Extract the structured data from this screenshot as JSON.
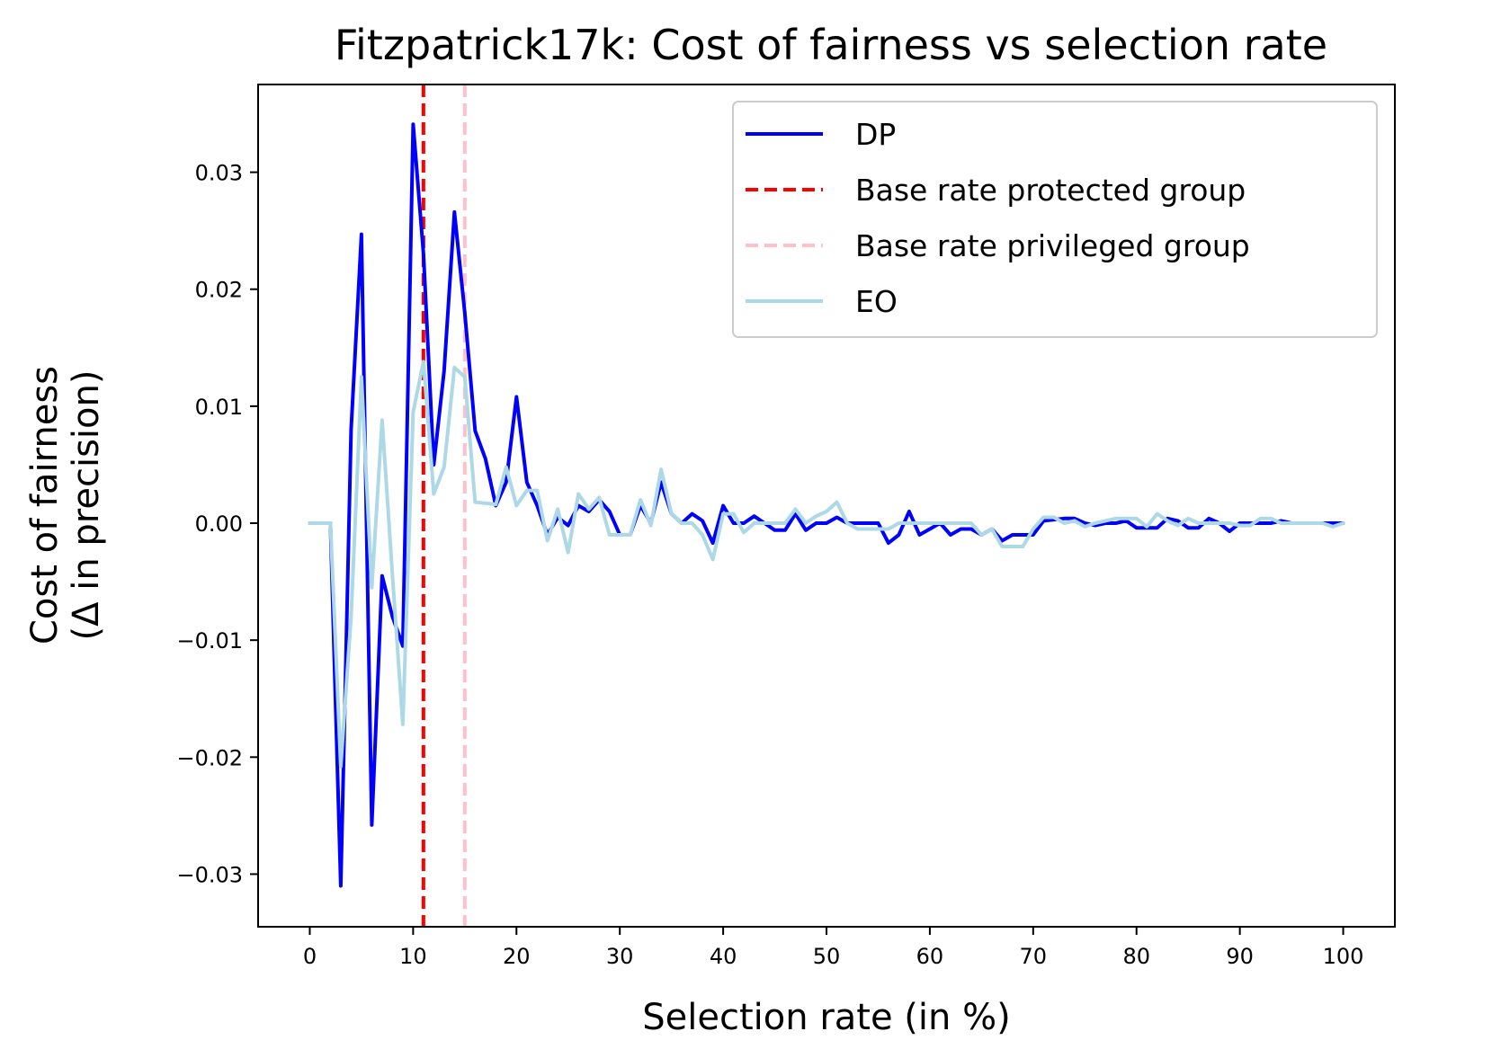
{
  "chart_data": {
    "type": "line",
    "title": "Fitzpatrick17k: Cost of fairness vs selection rate",
    "xlabel": "Selection rate (in %)",
    "ylabel_line1": "Cost of fairness",
    "ylabel_line2": "(Δ in precision)",
    "xlim": [
      -5,
      105
    ],
    "ylim": [
      -0.0345,
      0.0375
    ],
    "x_ticks": [
      0,
      10,
      20,
      30,
      40,
      50,
      60,
      70,
      80,
      90,
      100
    ],
    "x_tick_labels": [
      "0",
      "10",
      "20",
      "30",
      "40",
      "50",
      "60",
      "70",
      "80",
      "90",
      "100"
    ],
    "y_ticks": [
      -0.03,
      -0.02,
      -0.01,
      0.0,
      0.01,
      0.02,
      0.03
    ],
    "y_tick_labels": [
      "−0.03",
      "−0.02",
      "−0.01",
      "0.00",
      "0.01",
      "0.02",
      "0.03"
    ],
    "legend_position": "upper-right",
    "vlines": [
      {
        "name": "Base rate protected group",
        "x": 11,
        "color": "#ff0000"
      },
      {
        "name": "Base rate privileged group",
        "x": 15,
        "color": "#ffc0cb"
      }
    ],
    "series": [
      {
        "name": "DP",
        "color": "#0000ff",
        "points": [
          [
            0,
            0
          ],
          [
            1,
            0
          ],
          [
            2,
            0
          ],
          [
            3,
            -0.031
          ],
          [
            4,
            0.008
          ],
          [
            5,
            0.0247
          ],
          [
            6,
            -0.0258
          ],
          [
            7,
            -0.0045
          ],
          [
            8,
            -0.008
          ],
          [
            9,
            -0.0105
          ],
          [
            10,
            0.0341
          ],
          [
            11,
            0.023
          ],
          [
            12,
            0.005
          ],
          [
            13,
            0.013
          ],
          [
            14,
            0.0266
          ],
          [
            15,
            0.018
          ],
          [
            16,
            0.0079
          ],
          [
            17,
            0.0055
          ],
          [
            18,
            0.0015
          ],
          [
            19,
            0.0035
          ],
          [
            20,
            0.0108
          ],
          [
            21,
            0.0035
          ],
          [
            22,
            0.0015
          ],
          [
            23,
            -0.001
          ],
          [
            24,
            0.0005
          ],
          [
            25,
            -0.0002
          ],
          [
            26,
            0.0015
          ],
          [
            27,
            0.001
          ],
          [
            28,
            0.002
          ],
          [
            29,
            0.001
          ],
          [
            30,
            -0.001
          ],
          [
            31,
            -0.001
          ],
          [
            32,
            0.0015
          ],
          [
            33,
            0
          ],
          [
            34,
            0.0035
          ],
          [
            35,
            0.0008
          ],
          [
            36,
            0
          ],
          [
            37,
            0.0008
          ],
          [
            38,
            0.0002
          ],
          [
            39,
            -0.0017
          ],
          [
            40,
            0.0015
          ],
          [
            41,
            0
          ],
          [
            42,
            0
          ],
          [
            43,
            0.0006
          ],
          [
            44,
            0
          ],
          [
            45,
            -0.0006
          ],
          [
            46,
            -0.0006
          ],
          [
            47,
            0.0008
          ],
          [
            48,
            -0.0006
          ],
          [
            49,
            0
          ],
          [
            50,
            0
          ],
          [
            51,
            0.0005
          ],
          [
            52,
            0
          ],
          [
            53,
            0
          ],
          [
            54,
            0
          ],
          [
            55,
            0
          ],
          [
            56,
            -0.0017
          ],
          [
            57,
            -0.001
          ],
          [
            58,
            0.001
          ],
          [
            59,
            -0.001
          ],
          [
            60,
            -0.0005
          ],
          [
            61,
            0
          ],
          [
            62,
            -0.001
          ],
          [
            63,
            -0.0005
          ],
          [
            64,
            -0.0005
          ],
          [
            65,
            -0.001
          ],
          [
            66,
            -0.0005
          ],
          [
            67,
            -0.0015
          ],
          [
            68,
            -0.001
          ],
          [
            69,
            -0.001
          ],
          [
            70,
            -0.001
          ],
          [
            71,
            0.0002
          ],
          [
            72,
            0.0003
          ],
          [
            73,
            0.0004
          ],
          [
            74,
            0.0004
          ],
          [
            75,
            0
          ],
          [
            76,
            -0.0002
          ],
          [
            77,
            0
          ],
          [
            78,
            0
          ],
          [
            79,
            0.0002
          ],
          [
            80,
            -0.0004
          ],
          [
            81,
            -0.0004
          ],
          [
            82,
            -0.0004
          ],
          [
            83,
            0.0004
          ],
          [
            84,
            0.0002
          ],
          [
            85,
            -0.0004
          ],
          [
            86,
            -0.0004
          ],
          [
            87,
            0.0004
          ],
          [
            88,
            0
          ],
          [
            89,
            -0.0007
          ],
          [
            90,
            0
          ],
          [
            91,
            0
          ],
          [
            92,
            0
          ],
          [
            93,
            0
          ],
          [
            94,
            0.0002
          ],
          [
            95,
            0
          ],
          [
            96,
            0
          ],
          [
            97,
            0
          ],
          [
            98,
            0
          ],
          [
            99,
            0
          ],
          [
            100,
            0
          ]
        ]
      },
      {
        "name": "EO",
        "color": "#add8e6",
        "points": [
          [
            0,
            0
          ],
          [
            1,
            0
          ],
          [
            2,
            0
          ],
          [
            3,
            -0.0208
          ],
          [
            4,
            -0.008
          ],
          [
            5,
            0.0125
          ],
          [
            6,
            -0.0055
          ],
          [
            7,
            0.0088
          ],
          [
            8,
            -0.0045
          ],
          [
            9,
            -0.0172
          ],
          [
            10,
            0.0095
          ],
          [
            11,
            0.0138
          ],
          [
            12,
            0.0025
          ],
          [
            13,
            0.0048
          ],
          [
            14,
            0.0133
          ],
          [
            15,
            0.0125
          ],
          [
            16,
            0.0018
          ],
          [
            17,
            0.0017
          ],
          [
            18,
            0.0016
          ],
          [
            19,
            0.0048
          ],
          [
            20,
            0.0015
          ],
          [
            21,
            0.0028
          ],
          [
            22,
            0.0028
          ],
          [
            23,
            -0.0015
          ],
          [
            24,
            0.0012
          ],
          [
            25,
            -0.0025
          ],
          [
            26,
            0.0025
          ],
          [
            27,
            0.0012
          ],
          [
            28,
            0.0022
          ],
          [
            29,
            -0.001
          ],
          [
            30,
            -0.001
          ],
          [
            31,
            -0.001
          ],
          [
            32,
            0.002
          ],
          [
            33,
            -0.0002
          ],
          [
            34,
            0.0046
          ],
          [
            35,
            0.0008
          ],
          [
            36,
            0
          ],
          [
            37,
            0
          ],
          [
            38,
            -0.001
          ],
          [
            39,
            -0.0031
          ],
          [
            40,
            0.0008
          ],
          [
            41,
            0.0008
          ],
          [
            42,
            -0.0008
          ],
          [
            43,
            0
          ],
          [
            44,
            0
          ],
          [
            45,
            0
          ],
          [
            46,
            0
          ],
          [
            47,
            0.0012
          ],
          [
            48,
            0
          ],
          [
            49,
            0.0006
          ],
          [
            50,
            0.001
          ],
          [
            51,
            0.0018
          ],
          [
            52,
            0
          ],
          [
            53,
            -0.0005
          ],
          [
            54,
            -0.0005
          ],
          [
            55,
            -0.0005
          ],
          [
            56,
            -0.0005
          ],
          [
            57,
            0
          ],
          [
            58,
            0
          ],
          [
            59,
            0
          ],
          [
            60,
            0
          ],
          [
            61,
            0
          ],
          [
            62,
            0
          ],
          [
            63,
            0
          ],
          [
            64,
            0
          ],
          [
            65,
            -0.001
          ],
          [
            66,
            -0.0005
          ],
          [
            67,
            -0.002
          ],
          [
            68,
            -0.002
          ],
          [
            69,
            -0.002
          ],
          [
            70,
            -0.0005
          ],
          [
            71,
            0.0005
          ],
          [
            72,
            0.0005
          ],
          [
            73,
            0
          ],
          [
            74,
            0.0002
          ],
          [
            75,
            -0.0003
          ],
          [
            76,
            0
          ],
          [
            77,
            0.0002
          ],
          [
            78,
            0.0004
          ],
          [
            79,
            0.0004
          ],
          [
            80,
            0.0004
          ],
          [
            81,
            -0.0003
          ],
          [
            82,
            0.0008
          ],
          [
            83,
            0.0002
          ],
          [
            84,
            -0.0002
          ],
          [
            85,
            0.0004
          ],
          [
            86,
            0
          ],
          [
            87,
            0
          ],
          [
            88,
            0
          ],
          [
            89,
            0
          ],
          [
            90,
            -0.0002
          ],
          [
            91,
            -0.0002
          ],
          [
            92,
            0.0004
          ],
          [
            93,
            0.0004
          ],
          [
            94,
            0
          ],
          [
            95,
            0
          ],
          [
            96,
            0
          ],
          [
            97,
            0
          ],
          [
            98,
            0
          ],
          [
            99,
            -0.0003
          ],
          [
            100,
            0
          ]
        ]
      }
    ],
    "legend": [
      {
        "label": "DP",
        "style": "solid",
        "color": "#0000ff"
      },
      {
        "label": "Base rate protected group",
        "style": "dashed",
        "color": "#ff0000"
      },
      {
        "label": "Base rate privileged group",
        "style": "dashed",
        "color": "#ffc0cb"
      },
      {
        "label": "EO",
        "style": "solid",
        "color": "#add8e6"
      }
    ]
  }
}
